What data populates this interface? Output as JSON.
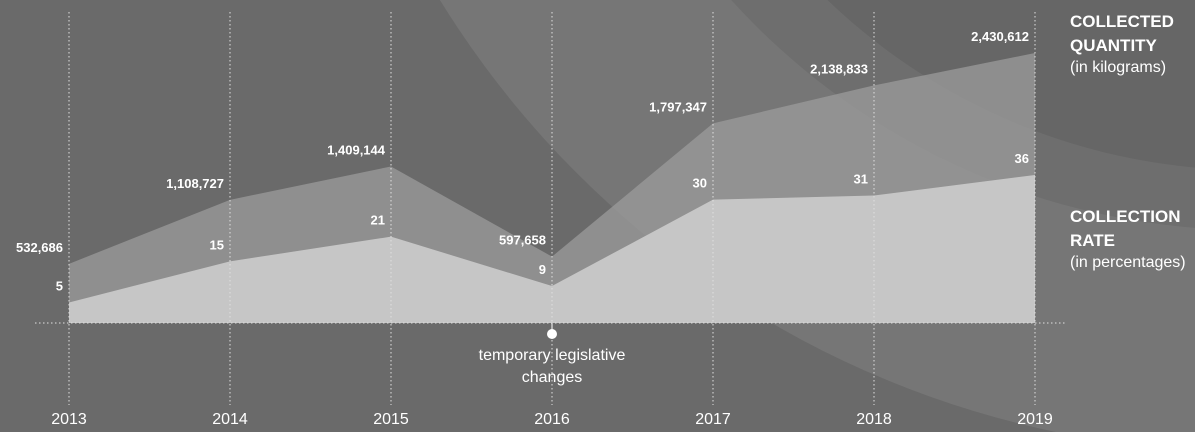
{
  "chart_data": {
    "type": "area",
    "categories": [
      "2013",
      "2014",
      "2015",
      "2016",
      "2017",
      "2018",
      "2019"
    ],
    "series": [
      {
        "name": "COLLECTED QUANTITY",
        "note": "(in kilograms)",
        "color": "#9c9c9c",
        "values": [
          532686,
          1108727,
          1409144,
          597658,
          1797347,
          2138833,
          2430612
        ],
        "value_labels": [
          "532,686",
          "1,108,727",
          "1,409,144",
          "597,658",
          "1,797,347",
          "2,138,833",
          "2,430,612"
        ]
      },
      {
        "name": "COLLECTION RATE",
        "note": "(in percentages)",
        "color": "#c9c9c9",
        "values": [
          5,
          15,
          21,
          9,
          30,
          31,
          36
        ]
      }
    ],
    "annotation": {
      "text": "temporary legislative changes",
      "category": "2016"
    }
  }
}
